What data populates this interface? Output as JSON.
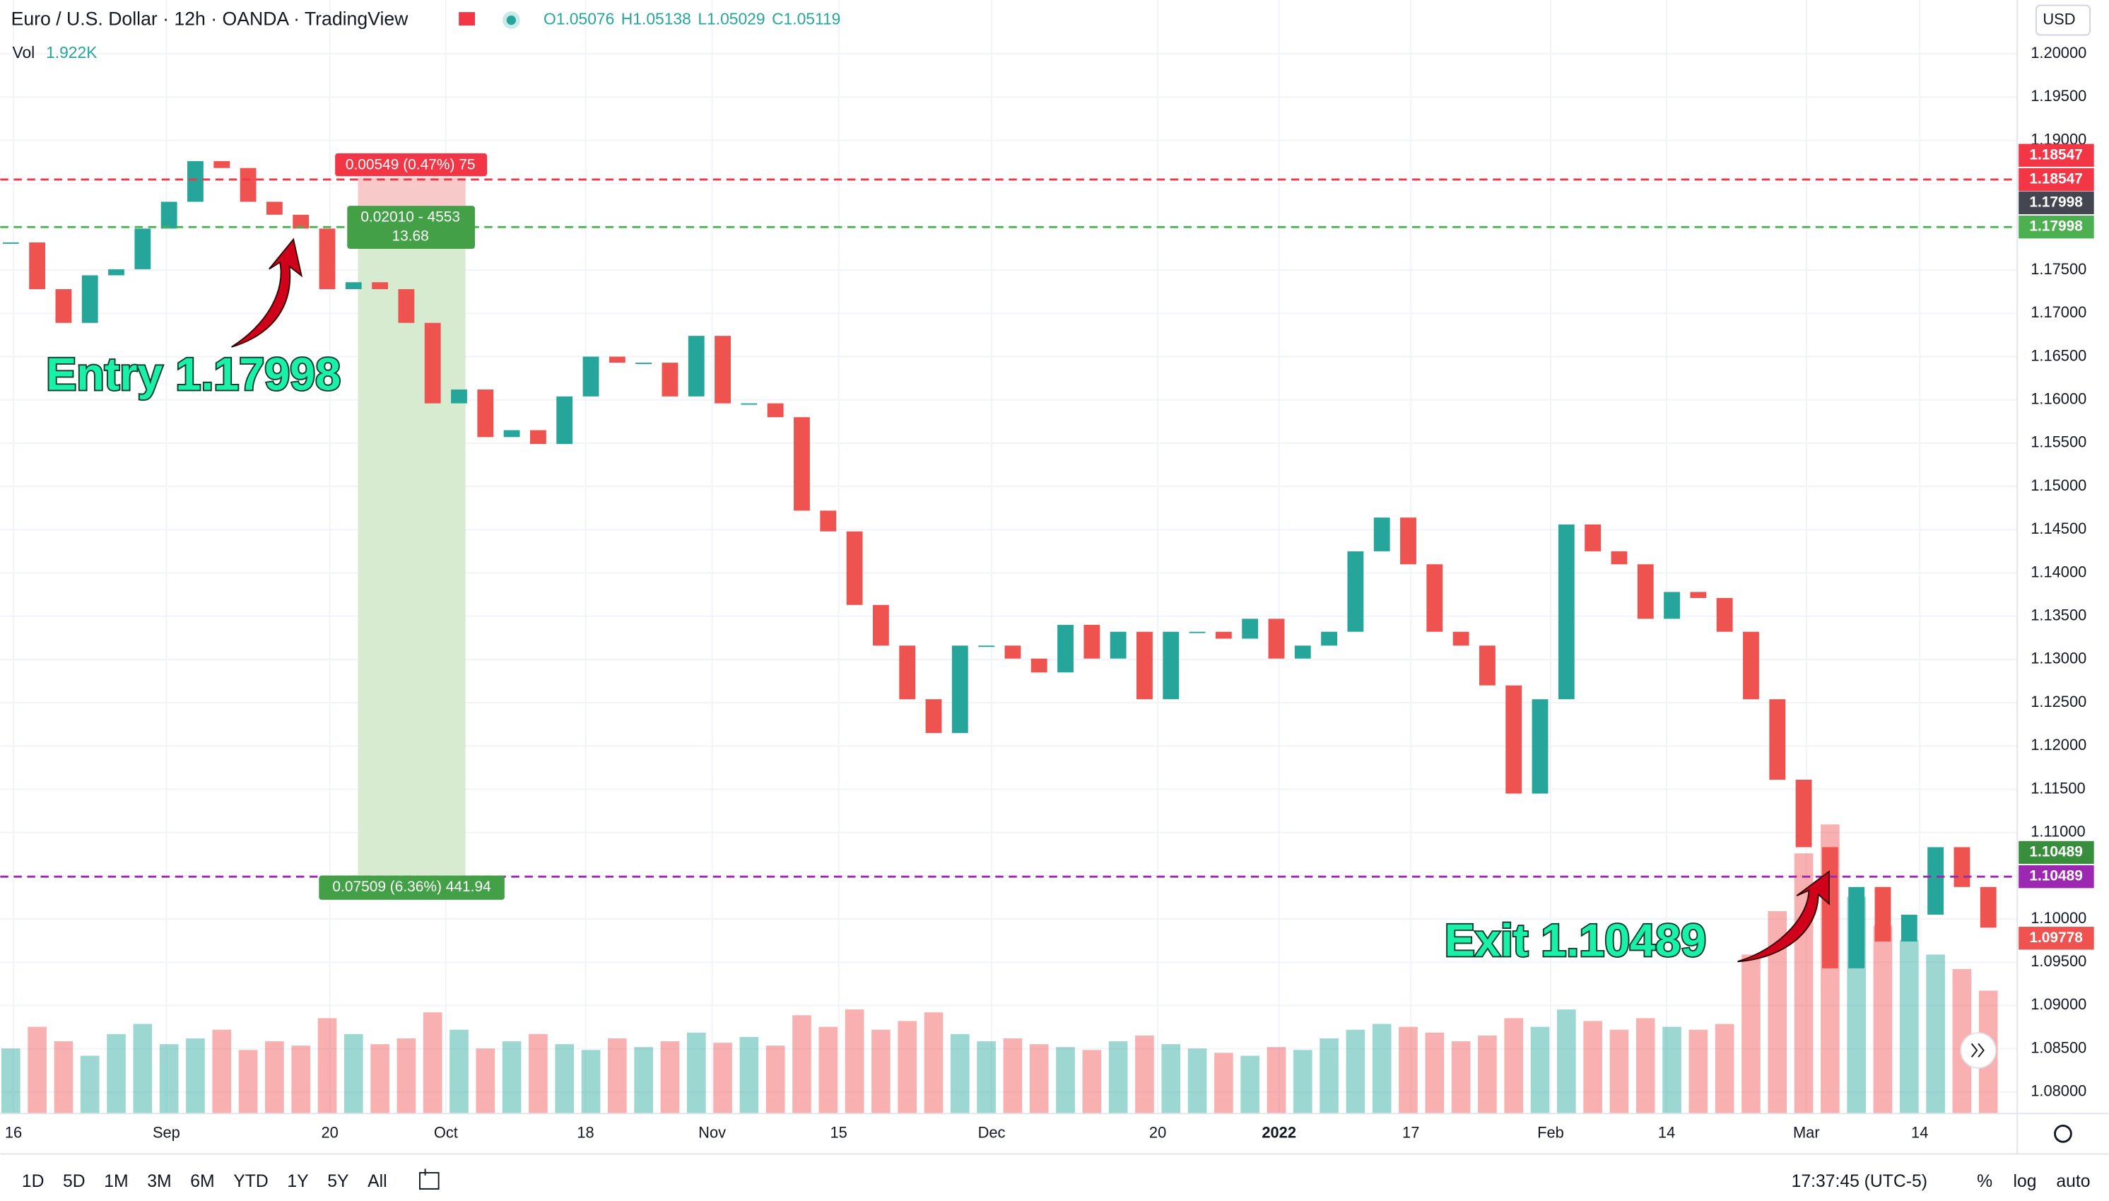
{
  "header": {
    "symbol": "Euro / U.S. Dollar · 12h · OANDA · TradingView",
    "ohlc": [
      "O1.05076",
      "H1.05138",
      "L1.05029",
      "C1.05119"
    ],
    "vol_label": "Vol",
    "vol_value": "1.922K",
    "currency": "USD"
  },
  "chart_data": {
    "type": "candlestick",
    "close": [
      1.1782,
      1.1728,
      1.1689,
      1.1744,
      1.1751,
      1.1798,
      1.1829,
      1.1876,
      1.1868,
      1.1829,
      1.1814,
      1.1798,
      1.1728,
      1.1736,
      1.1728,
      1.1689,
      1.1596,
      1.1612,
      1.1557,
      1.1565,
      1.1549,
      1.1604,
      1.165,
      1.1643,
      1.1643,
      1.1604,
      1.1674,
      1.1596,
      1.1596,
      1.158,
      1.1472,
      1.1448,
      1.1363,
      1.1316,
      1.1254,
      1.1215,
      1.1316,
      1.1316,
      1.1301,
      1.1285,
      1.134,
      1.1301,
      1.1332,
      1.1254,
      1.1332,
      1.1332,
      1.1324,
      1.1347,
      1.1301,
      1.1316,
      1.1332,
      1.1425,
      1.1464,
      1.141,
      1.1332,
      1.1316,
      1.127,
      1.1145,
      1.1254,
      1.1456,
      1.1425,
      1.141,
      1.1347,
      1.1378,
      1.1371,
      1.1332,
      1.1254,
      1.1161,
      1.1083,
      1.0943,
      1.1037,
      1.0974,
      1.1005,
      1.1083,
      1.1037,
      1.099
    ],
    "volume": [
      45,
      60,
      50,
      40,
      55,
      62,
      48,
      52,
      58,
      44,
      50,
      47,
      66,
      55,
      48,
      52,
      70,
      58,
      45,
      50,
      55,
      48,
      44,
      52,
      46,
      50,
      56,
      49,
      53,
      47,
      68,
      60,
      72,
      58,
      64,
      70,
      55,
      50,
      52,
      48,
      46,
      44,
      50,
      54,
      48,
      45,
      42,
      40,
      46,
      44,
      52,
      58,
      62,
      60,
      56,
      50,
      54,
      66,
      60,
      72,
      64,
      58,
      66,
      60,
      58,
      62,
      110,
      140,
      180,
      200,
      150,
      130,
      120,
      110,
      100,
      85
    ],
    "up_color": "#26a69a",
    "down_color": "#ef5350",
    "xlim": [
      -0.4,
      76.1
    ],
    "xticks": [
      {
        "value": 0.1,
        "label": "16"
      },
      {
        "value": 5.9,
        "label": "Sep"
      },
      {
        "value": 12.1,
        "label": "20"
      },
      {
        "value": 16.5,
        "label": "Oct"
      },
      {
        "value": 21.8,
        "label": "18"
      },
      {
        "value": 26.6,
        "label": "Nov"
      },
      {
        "value": 31.4,
        "label": "15"
      },
      {
        "value": 37.2,
        "label": "Dec"
      },
      {
        "value": 43.5,
        "label": "20"
      },
      {
        "value": 48.1,
        "label": "2022"
      },
      {
        "value": 53.1,
        "label": "17"
      },
      {
        "value": 58.4,
        "label": "Feb"
      },
      {
        "value": 62.8,
        "label": "14"
      },
      {
        "value": 68.1,
        "label": "Mar"
      },
      {
        "value": 72.4,
        "label": "14"
      }
    ],
    "ylim": [
      1.07751,
      1.20622
    ],
    "yticks": [
      {
        "value": 1.08,
        "label": "1.08000"
      },
      {
        "value": 1.085,
        "label": "1.08500"
      },
      {
        "value": 1.09,
        "label": "1.09000"
      },
      {
        "value": 1.095,
        "label": "1.09500"
      },
      {
        "value": 1.1,
        "label": "1.10000"
      },
      {
        "value": 1.105,
        "label": "1.10500"
      },
      {
        "value": 1.11,
        "label": "1.11000"
      },
      {
        "value": 1.115,
        "label": "1.11500"
      },
      {
        "value": 1.12,
        "label": "1.12000"
      },
      {
        "value": 1.125,
        "label": "1.12500"
      },
      {
        "value": 1.13,
        "label": "1.13000"
      },
      {
        "value": 1.135,
        "label": "1.13500"
      },
      {
        "value": 1.14,
        "label": "1.14000"
      },
      {
        "value": 1.145,
        "label": "1.14500"
      },
      {
        "value": 1.15,
        "label": "1.15000"
      },
      {
        "value": 1.155,
        "label": "1.15500"
      },
      {
        "value": 1.16,
        "label": "1.16000"
      },
      {
        "value": 1.165,
        "label": "1.16500"
      },
      {
        "value": 1.17,
        "label": "1.17000"
      },
      {
        "value": 1.175,
        "label": "1.17500"
      },
      {
        "value": 1.18,
        "label": "1.18000"
      },
      {
        "value": 1.185,
        "label": "1.18500"
      },
      {
        "value": 1.19,
        "label": "1.19000"
      },
      {
        "value": 1.195,
        "label": "1.19500"
      },
      {
        "value": 1.2,
        "label": "1.20000"
      }
    ],
    "grid": true,
    "lines": [
      {
        "value": 1.18547,
        "color": "#f23645"
      },
      {
        "value": 1.17998,
        "color": "#4caf50"
      },
      {
        "value": 1.10489,
        "color": "#9c27b0"
      }
    ],
    "tags": [
      {
        "value": 1.18547,
        "color": "#f23645"
      },
      {
        "value": 1.18547,
        "color": "#f23645"
      },
      {
        "value": 1.17998,
        "color": "#434651"
      },
      {
        "value": 1.17998,
        "color": "#4caf50"
      },
      {
        "value": 1.10489,
        "color": "#388e3c"
      },
      {
        "value": 1.10489,
        "color": "#9c27b0"
      },
      {
        "value": 1.09778,
        "color": "#ef5350"
      }
    ],
    "position": {
      "risk": "0.00549 (0.47%) 75",
      "entry": [
        "0.02010 - 4553",
        "13.68"
      ],
      "target": "0.07509 (6.36%) 441.94"
    },
    "annotations": [
      "Entry 1.17998",
      "Exit 1.10489"
    ]
  },
  "toolbar": {
    "ranges": [
      "1D",
      "5D",
      "1M",
      "3M",
      "6M",
      "YTD",
      "1Y",
      "5Y",
      "All"
    ],
    "time": "17:37:45 (UTC-5)",
    "options": [
      "%",
      "log",
      "auto"
    ]
  }
}
